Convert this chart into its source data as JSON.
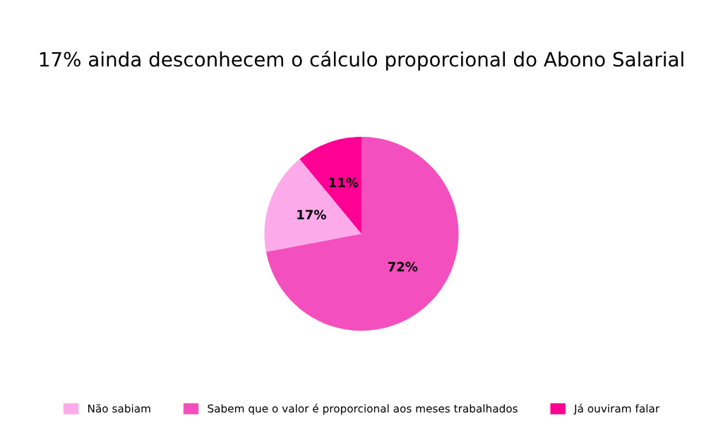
{
  "chart_data": {
    "type": "pie",
    "title": "17% ainda desconhecem o cálculo proporcional do Abono Salarial",
    "categories": [
      "Não sabiam",
      "Sabem que o valor é proporcional aos meses trabalhados",
      "Já ouviram falar"
    ],
    "values": [
      17,
      72,
      11
    ],
    "colors": [
      "#fdaaea",
      "#f44fbe",
      "#ff0095"
    ],
    "value_labels": [
      "17%",
      "72%",
      "11%"
    ],
    "legend": "bottom"
  }
}
